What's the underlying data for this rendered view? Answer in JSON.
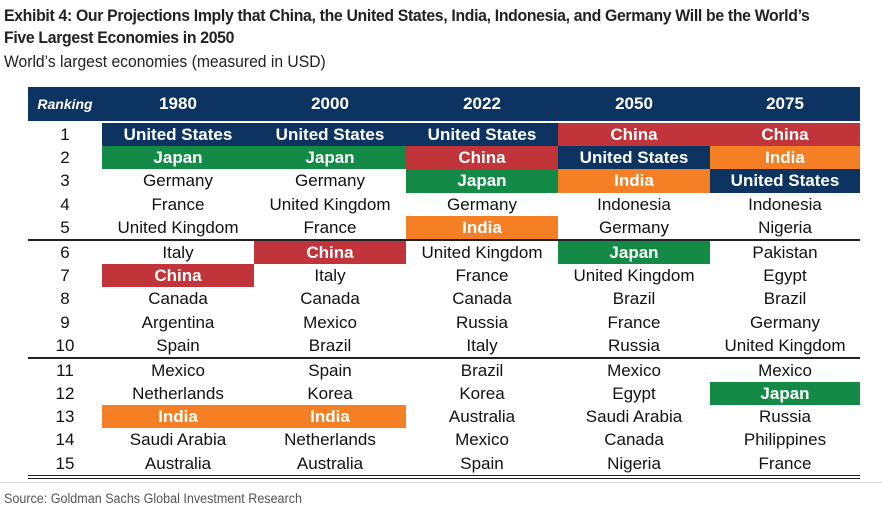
{
  "title": "Exhibit 4: Our Projections Imply that China, the United States, India, Indonesia, and Germany Will be the World’s Five Largest Economies in 2050",
  "subtitle": "World’s largest economies (measured in USD)",
  "source": "Source: Goldman Sachs Global Investment Research",
  "colors": {
    "header_bg": "#0d3461",
    "United States": "#0d3461",
    "China": "#c0343a",
    "Japan": "#138a46",
    "India": "#f47f24"
  },
  "table": {
    "ranking_label": "Ranking",
    "years": [
      "1980",
      "2000",
      "2022",
      "2050",
      "2075"
    ],
    "rows": [
      {
        "rank": "1",
        "cells": [
          "United States",
          "United States",
          "United States",
          "China",
          "China"
        ]
      },
      {
        "rank": "2",
        "cells": [
          "Japan",
          "Japan",
          "China",
          "United States",
          "India"
        ]
      },
      {
        "rank": "3",
        "cells": [
          "Germany",
          "Germany",
          "Japan",
          "India",
          "United States"
        ]
      },
      {
        "rank": "4",
        "cells": [
          "France",
          "United Kingdom",
          "Germany",
          "Indonesia",
          "Indonesia"
        ]
      },
      {
        "rank": "5",
        "cells": [
          "United Kingdom",
          "France",
          "India",
          "Germany",
          "Nigeria"
        ]
      },
      {
        "rank": "6",
        "cells": [
          "Italy",
          "China",
          "United Kingdom",
          "Japan",
          "Pakistan"
        ]
      },
      {
        "rank": "7",
        "cells": [
          "China",
          "Italy",
          "France",
          "United Kingdom",
          "Egypt"
        ]
      },
      {
        "rank": "8",
        "cells": [
          "Canada",
          "Canada",
          "Canada",
          "Brazil",
          "Brazil"
        ]
      },
      {
        "rank": "9",
        "cells": [
          "Argentina",
          "Mexico",
          "Russia",
          "France",
          "Germany"
        ]
      },
      {
        "rank": "10",
        "cells": [
          "Spain",
          "Brazil",
          "Italy",
          "Russia",
          "United Kingdom"
        ]
      },
      {
        "rank": "11",
        "cells": [
          "Mexico",
          "Spain",
          "Brazil",
          "Mexico",
          "Mexico"
        ]
      },
      {
        "rank": "12",
        "cells": [
          "Netherlands",
          "Korea",
          "Korea",
          "Egypt",
          "Japan"
        ]
      },
      {
        "rank": "13",
        "cells": [
          "India",
          "India",
          "Australia",
          "Saudi Arabia",
          "Russia"
        ]
      },
      {
        "rank": "14",
        "cells": [
          "Saudi Arabia",
          "Netherlands",
          "Mexico",
          "Canada",
          "Philippines"
        ]
      },
      {
        "rank": "15",
        "cells": [
          "Australia",
          "Australia",
          "Spain",
          "Nigeria",
          "France"
        ]
      }
    ]
  }
}
